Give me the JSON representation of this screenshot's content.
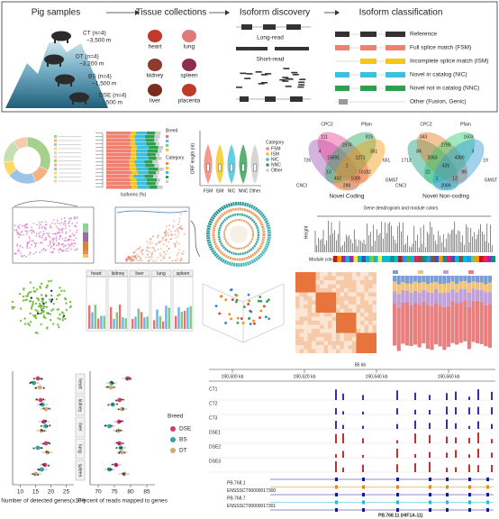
{
  "overview": {
    "samples": {
      "title": "Pig samples",
      "groups": [
        {
          "label": "CT (n=4)",
          "altitude": "~3,500 m"
        },
        {
          "label": "DT (n=4)",
          "altitude": "~3,200 m"
        },
        {
          "label": "BS (n=4)",
          "altitude": "~1,500 m"
        },
        {
          "label": "DSE (n=4)",
          "altitude": "~500 m"
        }
      ]
    },
    "tissues": {
      "title": "Tissue collections",
      "items": [
        "heart",
        "lung",
        "kidney",
        "spleen",
        "liver",
        "placenta"
      ]
    },
    "discovery": {
      "title": "Isoform discovery",
      "long": "Long-read",
      "short": "Short-read"
    },
    "classification": {
      "title": "Isoform classification",
      "items": [
        "Reference",
        "Full splice match (FSM)",
        "Incomplete splice match (ISM)",
        "Novel in catalog (NIC)",
        "Novel not in catalog (NNC)",
        "Other (Fusion, Genic)"
      ]
    }
  },
  "stacked": {
    "x_label": "Isoforms (%)",
    "legend_titles": [
      "Breed",
      "Category"
    ]
  },
  "orf_panel": {
    "y_label": "ORF length (nt)",
    "categories": [
      "FSM",
      "ISM",
      "NIC",
      "NNC",
      "Other"
    ],
    "legend_title": "Category"
  },
  "venn_coding": {
    "title": "Novel Coding",
    "sets": [
      "CPC2",
      "Pfam",
      "CNCI",
      "GMST"
    ],
    "counts": [
      111,
      815,
      726,
      651,
      1974,
      4,
      351,
      298,
      15691,
      1271,
      10,
      16182,
      1,
      402,
      1085
    ]
  },
  "venn_noncoding": {
    "title": "Novel Non-coding",
    "sets": [
      "CPC2",
      "Pfam",
      "CNCI",
      "GMST"
    ],
    "counts": [
      343,
      1603,
      1713,
      19,
      2785,
      84,
      3,
      2089,
      2063,
      4380,
      22,
      99,
      425,
      1,
      12
    ]
  },
  "dendrogram": {
    "title": "Gene dendrogram and module colors",
    "y_label": "Height",
    "row_label": "Module colors"
  },
  "tissue_bars": {
    "tissues": [
      "heart",
      "kidney",
      "liver",
      "lung",
      "spleen"
    ]
  },
  "detected": {
    "tissues": [
      "heart",
      "kidney",
      "liver",
      "lung",
      "spleen"
    ],
    "x_label": "Number of detected genes(x10³)",
    "xticks": [
      10,
      15,
      20,
      25
    ]
  },
  "mapped": {
    "x_label": "Percent of reads mapped to genes",
    "xticks": [
      70,
      75,
      80,
      85
    ]
  },
  "breed_legend": {
    "title": "Breed",
    "items": [
      "DSE",
      "BS",
      "DT"
    ]
  },
  "browser": {
    "span": "85 kb",
    "coords": [
      "190,600 kb",
      "190,620 kb",
      "190,640 kb",
      "190,660 kb"
    ],
    "tracks": [
      "CT1",
      "CT2",
      "CT3",
      "DSE1",
      "DSE2",
      "DSE3"
    ],
    "isoforms": [
      "PB.768.1",
      "ENSSSCT00000017300",
      "PB.768.7",
      "ENSSSCT00000017301",
      "PB.768.11 (HIF1A-11)"
    ]
  }
}
